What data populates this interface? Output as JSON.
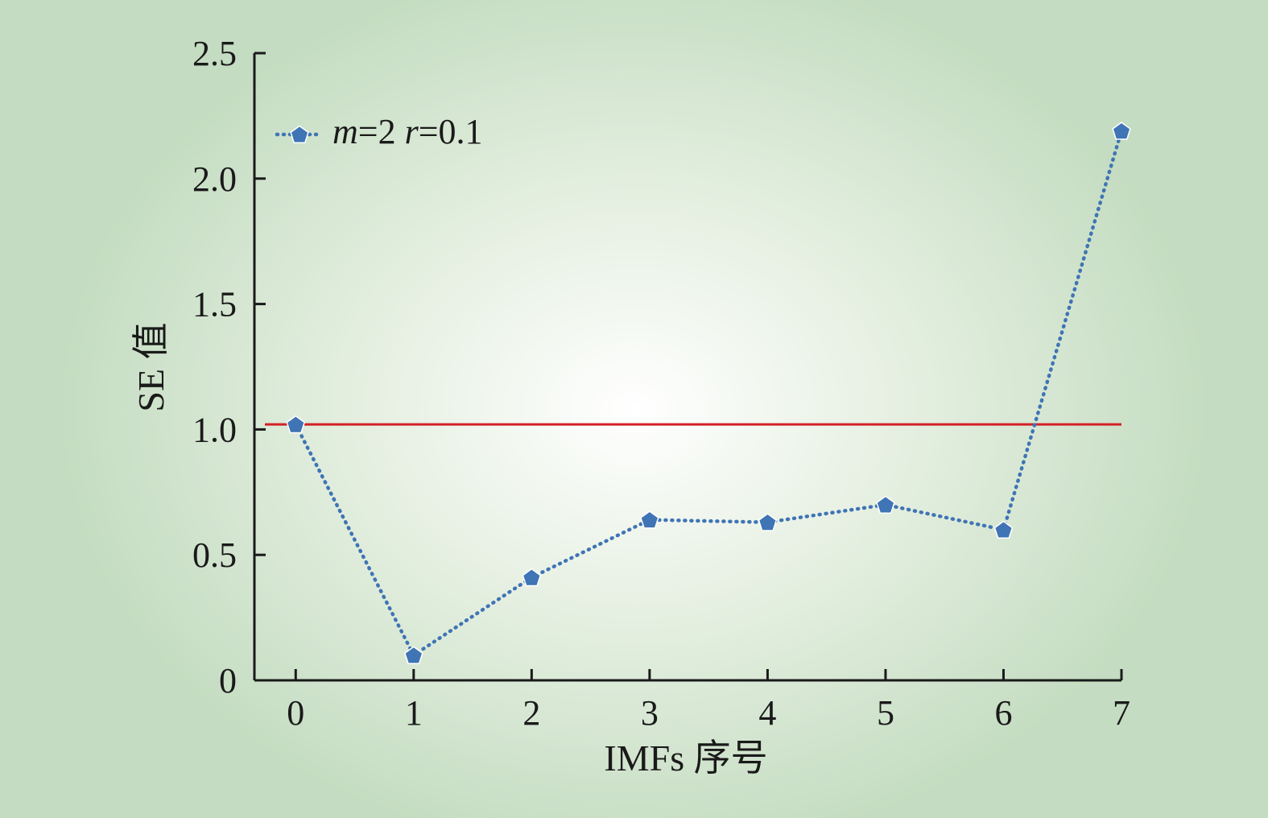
{
  "chart_data": {
    "type": "line",
    "xlabel": "IMFs 序号",
    "ylabel": "SE 值",
    "x": [
      0,
      1,
      2,
      3,
      4,
      5,
      6,
      7
    ],
    "xlim": [
      -0.35,
      7
    ],
    "ylim": [
      0,
      2.5
    ],
    "xticks": [
      "0",
      "1",
      "2",
      "3",
      "4",
      "5",
      "6",
      "7"
    ],
    "yticks": [
      "0",
      "0.5",
      "1.0",
      "1.5",
      "2.0",
      "2.5"
    ],
    "series": [
      {
        "name": "m=2 r=0.1",
        "name_parts": {
          "m_var": "m",
          "m_val": "=2 ",
          "r_var": "r",
          "r_val": "=0.1"
        },
        "values": [
          1.02,
          0.1,
          0.41,
          0.64,
          0.63,
          0.7,
          0.6,
          2.19
        ],
        "color": "#3f74b5",
        "line_style": "dotted",
        "marker": "pentagon"
      }
    ],
    "reference_line": {
      "y": 1.02,
      "color": "#d42027"
    },
    "legend_position": "top-left",
    "grid": false
  }
}
